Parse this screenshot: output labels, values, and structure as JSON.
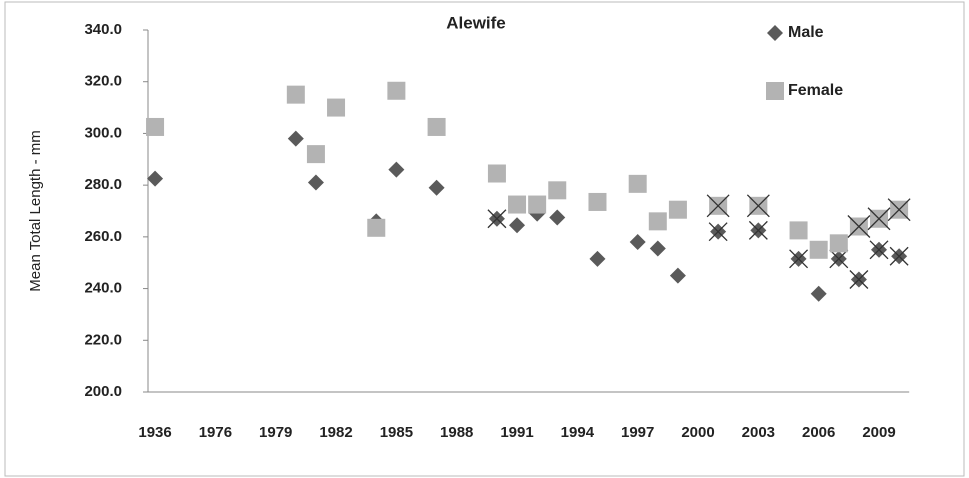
{
  "chart_data": {
    "type": "scatter",
    "title": "Alewife",
    "y_label": "Mean Total Length - mm",
    "categories": [
      "1936",
      null,
      null,
      "1976",
      null,
      null,
      "1979",
      null,
      null,
      "1982",
      null,
      null,
      "1985",
      null,
      null,
      "1988",
      null,
      null,
      "1991",
      null,
      null,
      "1994",
      null,
      null,
      "1997",
      null,
      null,
      "2000",
      null,
      null,
      "2003",
      null,
      null,
      "2006",
      null,
      null,
      "2009",
      null
    ],
    "series": [
      {
        "name": "Male",
        "color": "#5a5a5a",
        "marker": "diamond",
        "values": [
          282.5,
          null,
          null,
          null,
          null,
          null,
          null,
          298,
          281,
          null,
          null,
          266,
          286,
          null,
          279,
          null,
          null,
          267,
          264.5,
          269,
          267.5,
          null,
          251.5,
          null,
          258,
          255.5,
          245,
          null,
          262,
          null,
          262.5,
          null,
          251.5,
          238,
          251.5,
          243.5,
          255,
          252.5
        ],
        "crossed": [
          17,
          28,
          30,
          32,
          34,
          35,
          36,
          37
        ]
      },
      {
        "name": "Female",
        "color": "#b3b3b3",
        "marker": "square",
        "values": [
          302.5,
          null,
          null,
          null,
          null,
          null,
          null,
          315,
          292,
          310,
          null,
          263.5,
          316.5,
          null,
          302.5,
          null,
          null,
          284.5,
          272.5,
          272.5,
          278,
          null,
          273.5,
          null,
          280.5,
          266,
          270.5,
          null,
          272,
          null,
          272,
          null,
          262.5,
          255,
          257.5,
          264,
          267,
          270.5
        ],
        "crossed": [
          28,
          30,
          35,
          36,
          37
        ]
      }
    ],
    "ylim": [
      200,
      340
    ],
    "yticks": [
      {
        "value": 200,
        "label": "200.0"
      },
      {
        "value": 220,
        "label": "220.0"
      },
      {
        "value": 240,
        "label": "240.0"
      },
      {
        "value": 260,
        "label": "260.0"
      },
      {
        "value": 280,
        "label": "280.0"
      },
      {
        "value": 300,
        "label": "300.0"
      },
      {
        "value": 320,
        "label": "320.0"
      },
      {
        "value": 340,
        "label": "340.0"
      }
    ],
    "grid": false,
    "legend": "top-right"
  }
}
